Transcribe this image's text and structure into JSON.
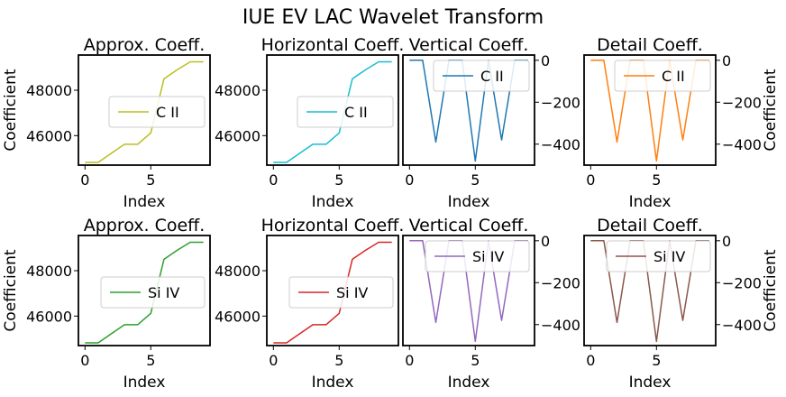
{
  "figure": {
    "title": "IUE EV LAC Wavelet Transform"
  },
  "chart_data": [
    {
      "type": "line",
      "title": "Approx. Coeff.",
      "xlabel": "Index",
      "ylabel": "Coefficient",
      "ylabel_side": "left",
      "x": [
        0,
        1,
        2,
        3,
        4,
        5,
        6,
        7,
        8,
        9
      ],
      "xlim": [
        -0.5,
        9.5
      ],
      "ylim": [
        44700,
        49550
      ],
      "xticks": [
        0,
        5
      ],
      "yticks": [
        46000,
        48000
      ],
      "ytick_side": "left",
      "legend": "center right",
      "series": [
        {
          "name": "C II",
          "color": "#bcbd22",
          "values": [
            44820,
            44820,
            45220,
            45620,
            45620,
            46120,
            48500,
            48900,
            49250,
            49250
          ]
        }
      ]
    },
    {
      "type": "line",
      "title": "Horizontal Coeff.",
      "xlabel": "Index",
      "ylabel": "",
      "ylabel_side": "left",
      "x": [
        0,
        1,
        2,
        3,
        4,
        5,
        6,
        7,
        8,
        9
      ],
      "xlim": [
        -0.5,
        9.5
      ],
      "ylim": [
        44700,
        49550
      ],
      "xticks": [
        0,
        5
      ],
      "yticks": [
        46000,
        48000
      ],
      "ytick_side": "left",
      "legend": "center right",
      "series": [
        {
          "name": "C II",
          "color": "#17becf",
          "values": [
            44820,
            44820,
            45220,
            45620,
            45620,
            46120,
            48500,
            48900,
            49250,
            49250
          ]
        }
      ]
    },
    {
      "type": "line",
      "title": "Vertical Coeff.",
      "xlabel": "Index",
      "ylabel": "",
      "ylabel_side": "right",
      "x": [
        0,
        1,
        2,
        3,
        4,
        5,
        6,
        7,
        8,
        9
      ],
      "xlim": [
        -0.5,
        9.5
      ],
      "ylim": [
        -500,
        25
      ],
      "xticks": [
        0,
        5
      ],
      "yticks": [
        -400,
        -200,
        0
      ],
      "ytick_side": "right",
      "legend": "upper right",
      "series": [
        {
          "name": "C II",
          "color": "#1f77b4",
          "values": [
            0,
            0,
            -390,
            0,
            0,
            -480,
            0,
            -380,
            0,
            0
          ]
        }
      ]
    },
    {
      "type": "line",
      "title": "Detail Coeff.",
      "xlabel": "Index",
      "ylabel": "Coefficient",
      "ylabel_side": "right",
      "x": [
        0,
        1,
        2,
        3,
        4,
        5,
        6,
        7,
        8,
        9
      ],
      "xlim": [
        -0.5,
        9.5
      ],
      "ylim": [
        -500,
        25
      ],
      "xticks": [
        0,
        5
      ],
      "yticks": [
        -400,
        -200,
        0
      ],
      "ytick_side": "right",
      "legend": "upper right",
      "series": [
        {
          "name": "C II",
          "color": "#ff7f0e",
          "values": [
            0,
            0,
            -390,
            0,
            0,
            -480,
            0,
            -380,
            0,
            0
          ]
        }
      ]
    },
    {
      "type": "line",
      "title": "Approx. Coeff.",
      "xlabel": "Index",
      "ylabel": "Coefficient",
      "ylabel_side": "left",
      "x": [
        0,
        1,
        2,
        3,
        4,
        5,
        6,
        7,
        8,
        9
      ],
      "xlim": [
        -0.5,
        9.5
      ],
      "ylim": [
        44700,
        49550
      ],
      "xticks": [
        0,
        5
      ],
      "yticks": [
        46000,
        48000
      ],
      "ytick_side": "left",
      "legend": "center right",
      "series": [
        {
          "name": "Si IV",
          "color": "#2ca02c",
          "values": [
            44820,
            44820,
            45220,
            45620,
            45620,
            46120,
            48500,
            48900,
            49250,
            49250
          ]
        }
      ]
    },
    {
      "type": "line",
      "title": "Horizontal Coeff.",
      "xlabel": "Index",
      "ylabel": "",
      "ylabel_side": "left",
      "x": [
        0,
        1,
        2,
        3,
        4,
        5,
        6,
        7,
        8,
        9
      ],
      "xlim": [
        -0.5,
        9.5
      ],
      "ylim": [
        44700,
        49550
      ],
      "xticks": [
        0,
        5
      ],
      "yticks": [
        46000,
        48000
      ],
      "ytick_side": "left",
      "legend": "center right",
      "series": [
        {
          "name": "Si IV",
          "color": "#d62728",
          "values": [
            44820,
            44820,
            45220,
            45620,
            45620,
            46120,
            48500,
            48900,
            49250,
            49250
          ]
        }
      ]
    },
    {
      "type": "line",
      "title": "Vertical Coeff.",
      "xlabel": "Index",
      "ylabel": "",
      "ylabel_side": "right",
      "x": [
        0,
        1,
        2,
        3,
        4,
        5,
        6,
        7,
        8,
        9
      ],
      "xlim": [
        -0.5,
        9.5
      ],
      "ylim": [
        -500,
        25
      ],
      "xticks": [
        0,
        5
      ],
      "yticks": [
        -400,
        -200,
        0
      ],
      "ytick_side": "right",
      "legend": "upper right",
      "series": [
        {
          "name": "Si IV",
          "color": "#9467bd",
          "values": [
            0,
            0,
            -390,
            0,
            0,
            -480,
            0,
            -380,
            0,
            0
          ]
        }
      ]
    },
    {
      "type": "line",
      "title": "Detail Coeff.",
      "xlabel": "Index",
      "ylabel": "Coefficient",
      "ylabel_side": "right",
      "x": [
        0,
        1,
        2,
        3,
        4,
        5,
        6,
        7,
        8,
        9
      ],
      "xlim": [
        -0.5,
        9.5
      ],
      "ylim": [
        -500,
        25
      ],
      "xticks": [
        0,
        5
      ],
      "yticks": [
        -400,
        -200,
        0
      ],
      "ytick_side": "right",
      "legend": "upper right",
      "series": [
        {
          "name": "Si IV",
          "color": "#8c564b",
          "values": [
            0,
            0,
            -390,
            0,
            0,
            -480,
            0,
            -380,
            0,
            0
          ]
        }
      ]
    }
  ]
}
